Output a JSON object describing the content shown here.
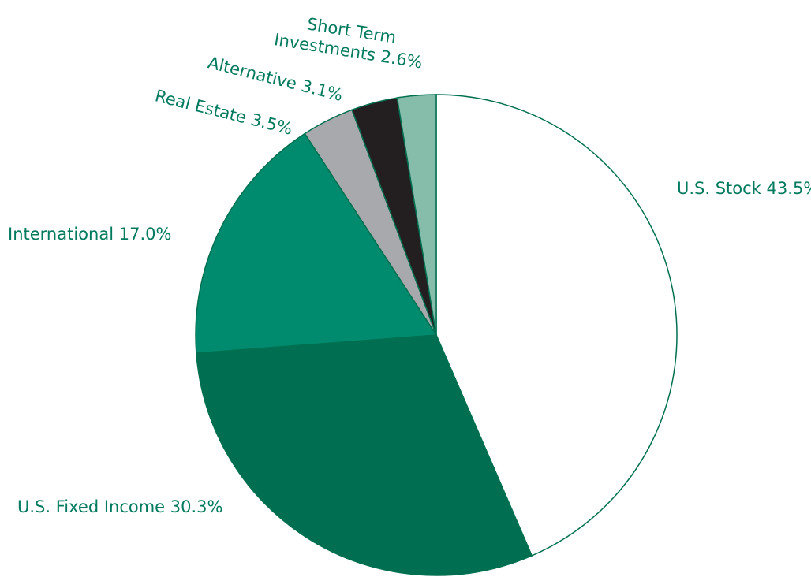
{
  "chart_data": {
    "type": "pie",
    "categories": [
      "U.S. Stock",
      "U.S. Fixed Income",
      "International",
      "Real Estate",
      "Alternative",
      "Short Term Investments"
    ],
    "values": [
      43.5,
      30.3,
      17.0,
      3.5,
      3.1,
      2.6
    ],
    "value_labels": [
      "43.5%",
      "30.3%",
      "17.0%",
      "3.5%",
      "3.1%",
      "2.6%"
    ],
    "colors": [
      "#ffffff",
      "#006e50",
      "#008a6e",
      "#a7a9ac",
      "#231f20",
      "#86bcaa"
    ],
    "stroke": "#007050"
  }
}
